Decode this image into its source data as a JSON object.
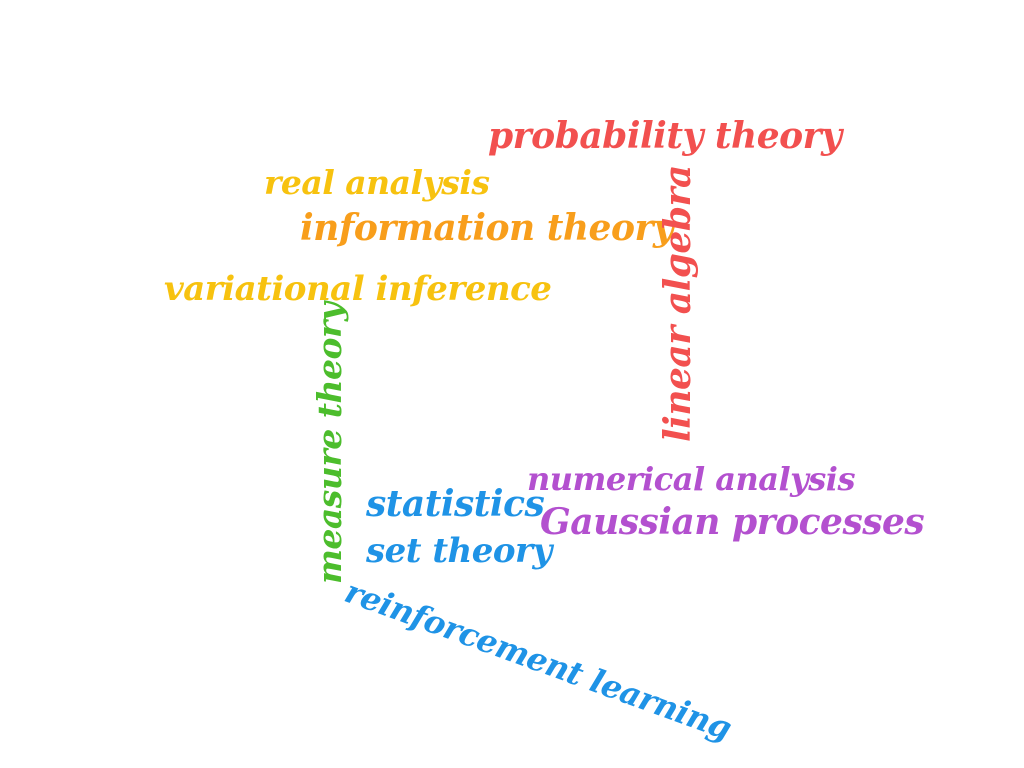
{
  "cloud": {
    "words": {
      "probability_theory": {
        "text": "probability theory",
        "color": "#f2504f"
      },
      "real_analysis": {
        "text": "real analysis",
        "color": "#f7c20f"
      },
      "information_theory": {
        "text": "information theory",
        "color": "#f89e1b"
      },
      "variational_inference": {
        "text": "variational inference",
        "color": "#f7c20f"
      },
      "linear_algebra": {
        "text": "linear algebra",
        "color": "#f2504f"
      },
      "measure_theory": {
        "text": "measure theory",
        "color": "#4cbd2c"
      },
      "numerical_analysis": {
        "text": "numerical analysis",
        "color": "#b350cf"
      },
      "statistics": {
        "text": "statistics",
        "color": "#1f93e6"
      },
      "gaussian_processes": {
        "text": "Gaussian processes",
        "color": "#b350cf"
      },
      "set_theory": {
        "text": "set theory",
        "color": "#1f93e6"
      },
      "reinforcement_learning": {
        "text": "reinforcement learning",
        "color": "#1f93e6"
      }
    }
  }
}
